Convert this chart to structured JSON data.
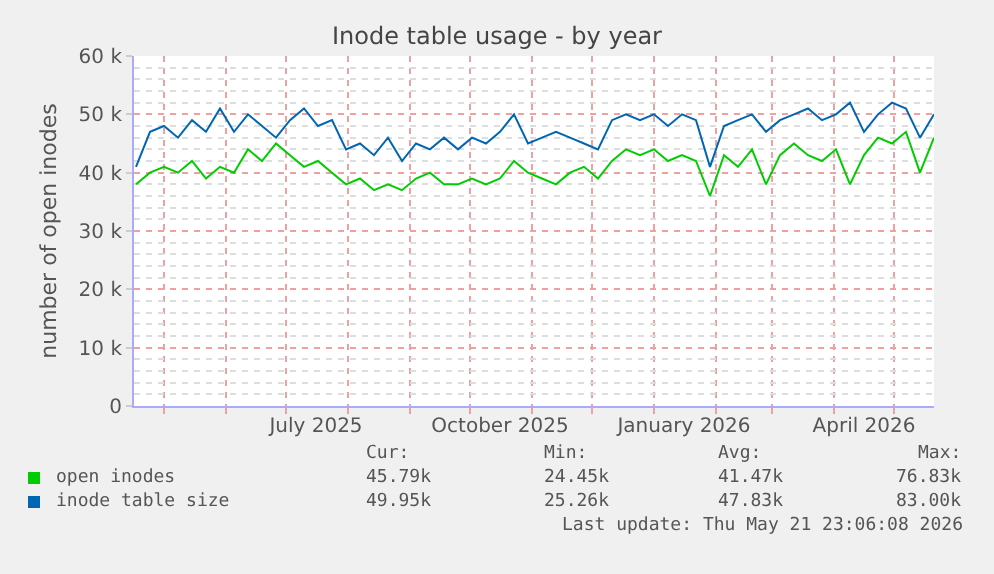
{
  "chart_data": {
    "type": "line",
    "title": "Inode table usage - by year",
    "ylabel": "number of open inodes",
    "x": [
      "2025-04-17",
      "2025-04-24",
      "2025-05-01",
      "2025-05-08",
      "2025-05-15",
      "2025-05-22",
      "2025-05-29",
      "2025-06-05",
      "2025-06-12",
      "2025-06-19",
      "2025-06-26",
      "2025-07-03",
      "2025-07-10",
      "2025-07-17",
      "2025-07-24",
      "2025-07-31",
      "2025-08-07",
      "2025-08-14",
      "2025-08-21",
      "2025-08-28",
      "2025-09-04",
      "2025-09-11",
      "2025-09-18",
      "2025-09-25",
      "2025-10-02",
      "2025-10-09",
      "2025-10-16",
      "2025-10-23",
      "2025-10-30",
      "2025-11-06",
      "2025-11-13",
      "2025-11-20",
      "2025-11-27",
      "2025-12-04",
      "2025-12-11",
      "2025-12-18",
      "2025-12-25",
      "2026-01-01",
      "2026-01-08",
      "2026-01-15",
      "2026-01-22",
      "2026-01-29",
      "2026-02-05",
      "2026-02-12",
      "2026-02-19",
      "2026-02-26",
      "2026-03-05",
      "2026-03-12",
      "2026-03-19",
      "2026-03-26",
      "2026-04-02",
      "2026-04-09",
      "2026-04-16",
      "2026-04-23",
      "2026-04-30",
      "2026-05-07",
      "2026-05-14",
      "2026-05-21"
    ],
    "series": [
      {
        "name": "open inodes",
        "color": "#00cc00",
        "values": [
          38000,
          40000,
          41000,
          40000,
          42000,
          39000,
          41000,
          40000,
          44000,
          42000,
          45000,
          43000,
          41000,
          42000,
          40000,
          38000,
          39000,
          37000,
          38000,
          37000,
          39000,
          40000,
          38000,
          38000,
          39000,
          38000,
          39000,
          42000,
          40000,
          39000,
          38000,
          40000,
          41000,
          39000,
          42000,
          44000,
          43000,
          44000,
          42000,
          43000,
          42000,
          36000,
          43000,
          41000,
          44000,
          38000,
          43000,
          45000,
          43000,
          42000,
          44000,
          38000,
          43000,
          46000,
          45000,
          47000,
          40000,
          46000
        ]
      },
      {
        "name": "inode table size",
        "color": "#0066b3",
        "values": [
          41000,
          47000,
          48000,
          46000,
          49000,
          47000,
          51000,
          47000,
          50000,
          48000,
          46000,
          49000,
          51000,
          48000,
          49000,
          44000,
          45000,
          43000,
          46000,
          42000,
          45000,
          44000,
          46000,
          44000,
          46000,
          45000,
          47000,
          50000,
          45000,
          46000,
          47000,
          46000,
          45000,
          44000,
          49000,
          50000,
          49000,
          50000,
          48000,
          50000,
          49000,
          41000,
          48000,
          49000,
          50000,
          47000,
          49000,
          50000,
          51000,
          49000,
          50000,
          52000,
          47000,
          50000,
          52000,
          51000,
          46000,
          50000
        ]
      }
    ],
    "xlim": [
      "2025-04-16",
      "2026-05-21"
    ],
    "xticks": [
      {
        "value": "2025-07-16",
        "label": "July 2025"
      },
      {
        "value": "2025-10-16",
        "label": "October 2025"
      },
      {
        "value": "2026-01-16",
        "label": "January 2026"
      },
      {
        "value": "2026-04-16",
        "label": "April 2026"
      }
    ],
    "ylim": [
      0,
      60000
    ],
    "yticks": [
      0,
      {
        "value": 10000,
        "label": "10 k"
      },
      {
        "value": 20000,
        "label": "20 k"
      },
      {
        "value": 30000,
        "label": "30 k"
      },
      {
        "value": 40000,
        "label": "40 k"
      },
      {
        "value": 50000,
        "label": "50 k"
      },
      {
        "value": 60000,
        "label": "60 k"
      }
    ],
    "grid": true,
    "legend": "bottom",
    "marker": "none",
    "line_style": "solid",
    "annotations": [
      "Cur:",
      "Min:",
      "Avg:",
      "Max:",
      "45.79k",
      "24.45k",
      "41.47k",
      "76.83k",
      "49.95k",
      "25.26k",
      "47.83k",
      "83.00k",
      "Last update: Thu May 21 23:06:08 2026"
    ]
  }
}
